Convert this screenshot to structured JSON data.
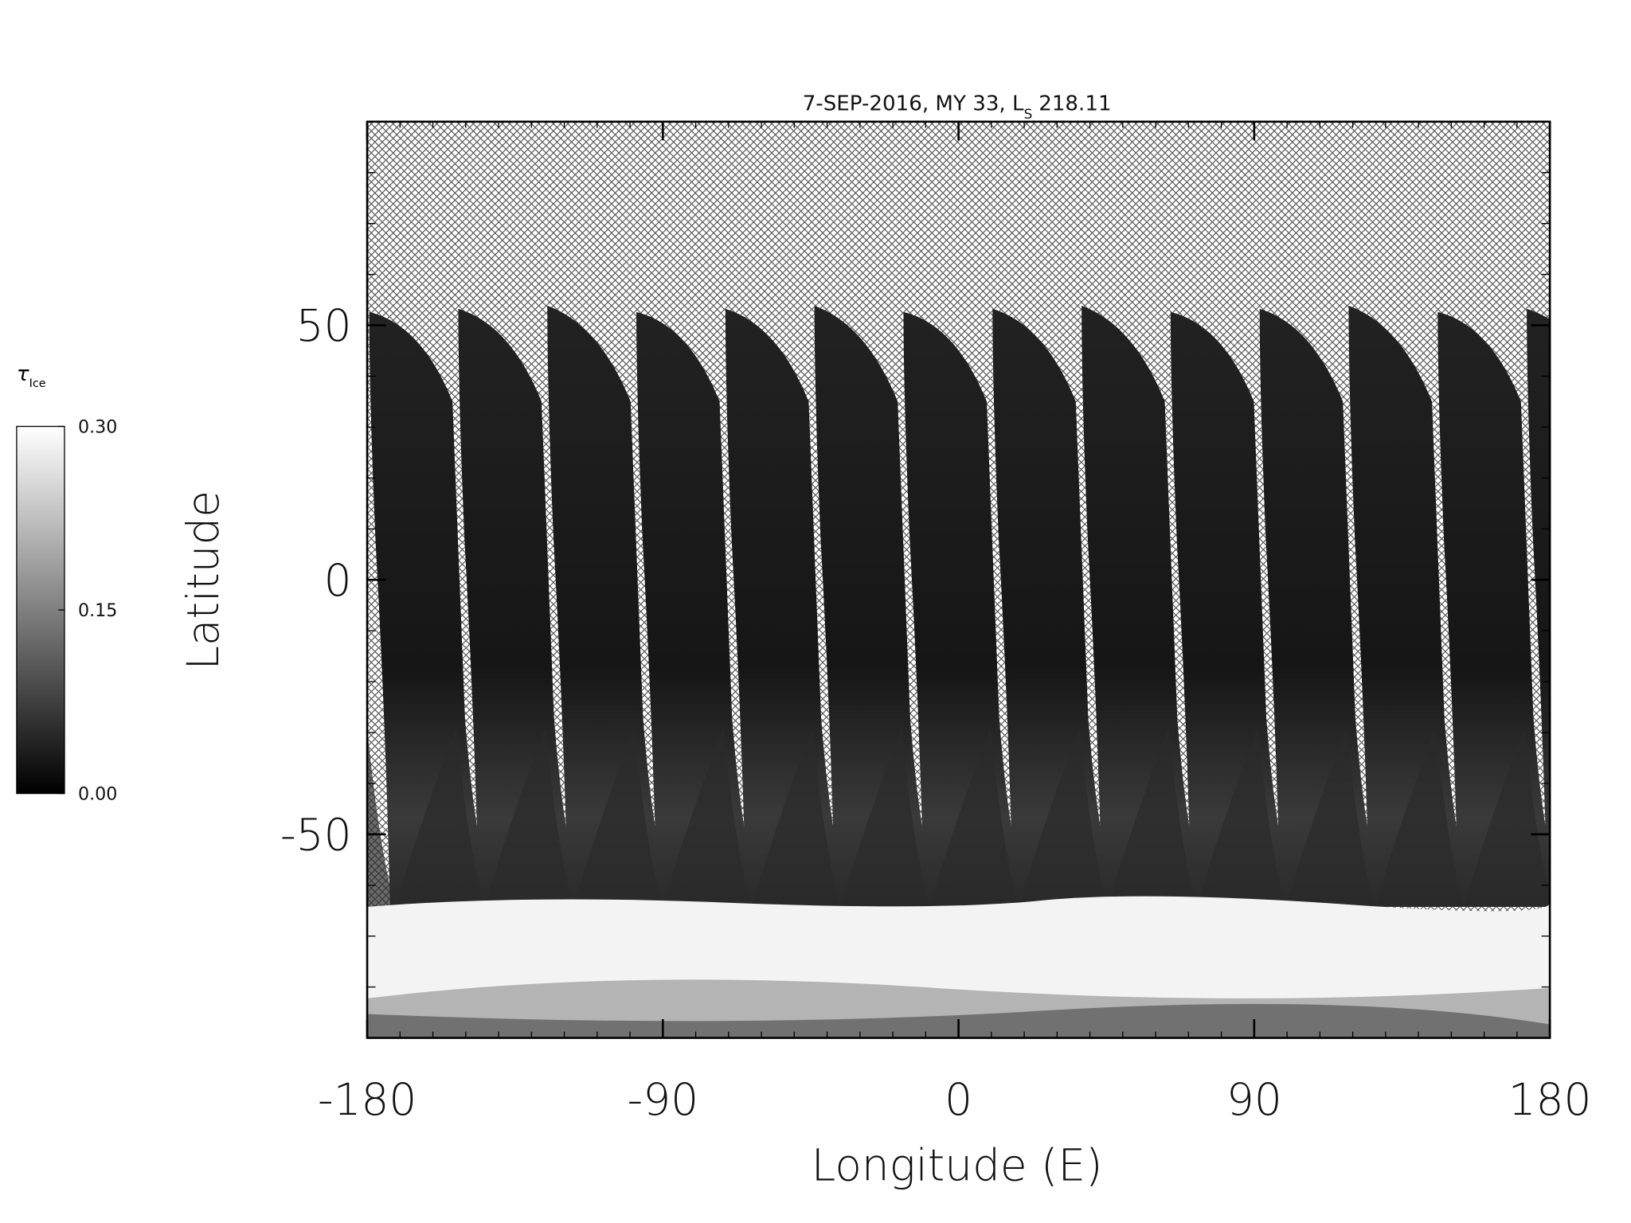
{
  "chart_data": {
    "type": "map",
    "title": "7-SEP-2016, MY 33,  L",
    "title_subscript": "S",
    "title_suffix": "218.11",
    "xlabel": "Longitude (E)",
    "ylabel": "Latitude",
    "xlim": [
      -180,
      180
    ],
    "xticks": [
      -180,
      -90,
      0,
      90,
      180
    ],
    "ylim": [
      -90,
      90
    ],
    "yticks": [
      -50,
      0,
      50
    ],
    "colorbar": {
      "label": "τ",
      "label_subscript": "Ice",
      "lim": [
        0,
        0.3
      ],
      "ticks": [
        {
          "value": 0,
          "label": "0.00"
        },
        {
          "value": 0.15,
          "label": "0.15"
        },
        {
          "value": 0.3,
          "label": "0.30"
        }
      ]
    }
  }
}
